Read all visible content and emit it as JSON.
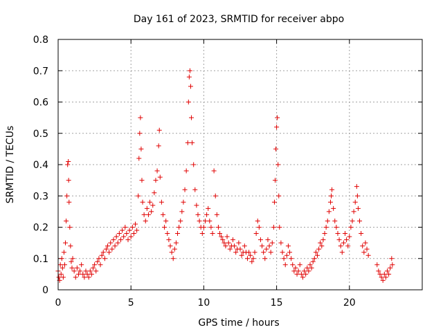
{
  "chart_data": {
    "type": "scatter",
    "title": "Day 161 of 2023, SRMTID for receiver abpo",
    "xlabel": "GPS time / hours",
    "ylabel": "SRMTID / TECUs",
    "xlim": [
      0,
      25
    ],
    "ylim": [
      0,
      0.8
    ],
    "x_ticks": [
      0,
      5,
      10,
      15,
      20
    ],
    "x_tick_labels": [
      "0",
      "5",
      "10",
      "15",
      "20"
    ],
    "y_ticks": [
      0,
      0.1,
      0.2,
      0.3,
      0.4,
      0.5,
      0.6,
      0.7,
      0.8
    ],
    "y_tick_labels": [
      "0",
      "0.1",
      "0.2",
      "0.3",
      "0.4",
      "0.5",
      "0.6",
      "0.7",
      "0.8"
    ],
    "grid": true,
    "marker": "+",
    "marker_color": "#e00000",
    "series": [
      {
        "name": "SRMTID",
        "points": [
          [
            0.0,
            0.06
          ],
          [
            0.05,
            0.04
          ],
          [
            0.1,
            0.03
          ],
          [
            0.15,
            0.08
          ],
          [
            0.2,
            0.05
          ],
          [
            0.25,
            0.1
          ],
          [
            0.3,
            0.07
          ],
          [
            0.35,
            0.04
          ],
          [
            0.4,
            0.12
          ],
          [
            0.45,
            0.08
          ],
          [
            0.5,
            0.15
          ],
          [
            0.55,
            0.22
          ],
          [
            0.6,
            0.3
          ],
          [
            0.65,
            0.4
          ],
          [
            0.7,
            0.41
          ],
          [
            0.72,
            0.35
          ],
          [
            0.75,
            0.28
          ],
          [
            0.8,
            0.2
          ],
          [
            0.85,
            0.14
          ],
          [
            0.9,
            0.09
          ],
          [
            0.95,
            0.07
          ],
          [
            1.0,
            0.1
          ],
          [
            1.1,
            0.06
          ],
          [
            1.2,
            0.04
          ],
          [
            1.3,
            0.07
          ],
          [
            1.4,
            0.05
          ],
          [
            1.5,
            0.06
          ],
          [
            1.6,
            0.08
          ],
          [
            1.7,
            0.05
          ],
          [
            1.8,
            0.04
          ],
          [
            1.9,
            0.06
          ],
          [
            2.0,
            0.05
          ],
          [
            2.1,
            0.04
          ],
          [
            2.2,
            0.06
          ],
          [
            2.3,
            0.05
          ],
          [
            2.4,
            0.07
          ],
          [
            2.5,
            0.08
          ],
          [
            2.6,
            0.06
          ],
          [
            2.7,
            0.09
          ],
          [
            2.8,
            0.1
          ],
          [
            2.9,
            0.08
          ],
          [
            3.0,
            0.11
          ],
          [
            3.1,
            0.12
          ],
          [
            3.2,
            0.1
          ],
          [
            3.3,
            0.13
          ],
          [
            3.4,
            0.14
          ],
          [
            3.5,
            0.12
          ],
          [
            3.6,
            0.15
          ],
          [
            3.7,
            0.13
          ],
          [
            3.8,
            0.16
          ],
          [
            3.9,
            0.14
          ],
          [
            4.0,
            0.17
          ],
          [
            4.1,
            0.15
          ],
          [
            4.2,
            0.18
          ],
          [
            4.3,
            0.16
          ],
          [
            4.4,
            0.19
          ],
          [
            4.5,
            0.17
          ],
          [
            4.6,
            0.2
          ],
          [
            4.7,
            0.18
          ],
          [
            4.8,
            0.16
          ],
          [
            4.9,
            0.19
          ],
          [
            5.0,
            0.17
          ],
          [
            5.1,
            0.2
          ],
          [
            5.2,
            0.18
          ],
          [
            5.3,
            0.21
          ],
          [
            5.4,
            0.19
          ],
          [
            5.5,
            0.3
          ],
          [
            5.55,
            0.42
          ],
          [
            5.6,
            0.5
          ],
          [
            5.65,
            0.55
          ],
          [
            5.7,
            0.45
          ],
          [
            5.75,
            0.35
          ],
          [
            5.8,
            0.28
          ],
          [
            5.9,
            0.24
          ],
          [
            6.0,
            0.22
          ],
          [
            6.1,
            0.26
          ],
          [
            6.2,
            0.24
          ],
          [
            6.3,
            0.28
          ],
          [
            6.4,
            0.25
          ],
          [
            6.5,
            0.27
          ],
          [
            6.6,
            0.31
          ],
          [
            6.7,
            0.35
          ],
          [
            6.8,
            0.38
          ],
          [
            6.9,
            0.46
          ],
          [
            6.95,
            0.51
          ],
          [
            7.0,
            0.36
          ],
          [
            7.1,
            0.28
          ],
          [
            7.2,
            0.24
          ],
          [
            7.3,
            0.2
          ],
          [
            7.4,
            0.22
          ],
          [
            7.5,
            0.18
          ],
          [
            7.6,
            0.16
          ],
          [
            7.7,
            0.14
          ],
          [
            7.8,
            0.12
          ],
          [
            7.9,
            0.1
          ],
          [
            8.0,
            0.13
          ],
          [
            8.1,
            0.15
          ],
          [
            8.2,
            0.18
          ],
          [
            8.3,
            0.2
          ],
          [
            8.4,
            0.22
          ],
          [
            8.5,
            0.25
          ],
          [
            8.6,
            0.28
          ],
          [
            8.7,
            0.32
          ],
          [
            8.8,
            0.38
          ],
          [
            8.9,
            0.47
          ],
          [
            8.95,
            0.6
          ],
          [
            9.0,
            0.68
          ],
          [
            9.05,
            0.7
          ],
          [
            9.1,
            0.65
          ],
          [
            9.15,
            0.55
          ],
          [
            9.2,
            0.47
          ],
          [
            9.3,
            0.4
          ],
          [
            9.4,
            0.32
          ],
          [
            9.5,
            0.27
          ],
          [
            9.6,
            0.24
          ],
          [
            9.7,
            0.22
          ],
          [
            9.8,
            0.2
          ],
          [
            9.9,
            0.18
          ],
          [
            10.0,
            0.2
          ],
          [
            10.1,
            0.22
          ],
          [
            10.2,
            0.24
          ],
          [
            10.3,
            0.26
          ],
          [
            10.4,
            0.22
          ],
          [
            10.5,
            0.2
          ],
          [
            10.6,
            0.18
          ],
          [
            10.7,
            0.38
          ],
          [
            10.8,
            0.3
          ],
          [
            10.9,
            0.24
          ],
          [
            11.0,
            0.2
          ],
          [
            11.1,
            0.18
          ],
          [
            11.2,
            0.17
          ],
          [
            11.3,
            0.16
          ],
          [
            11.4,
            0.15
          ],
          [
            11.5,
            0.14
          ],
          [
            11.6,
            0.17
          ],
          [
            11.7,
            0.15
          ],
          [
            11.8,
            0.13
          ],
          [
            11.9,
            0.14
          ],
          [
            12.0,
            0.16
          ],
          [
            12.1,
            0.14
          ],
          [
            12.2,
            0.12
          ],
          [
            12.3,
            0.13
          ],
          [
            12.4,
            0.15
          ],
          [
            12.5,
            0.13
          ],
          [
            12.6,
            0.11
          ],
          [
            12.7,
            0.12
          ],
          [
            12.8,
            0.14
          ],
          [
            12.9,
            0.12
          ],
          [
            13.0,
            0.1
          ],
          [
            13.1,
            0.12
          ],
          [
            13.2,
            0.11
          ],
          [
            13.3,
            0.09
          ],
          [
            13.4,
            0.1
          ],
          [
            13.5,
            0.12
          ],
          [
            13.6,
            0.18
          ],
          [
            13.7,
            0.22
          ],
          [
            13.8,
            0.2
          ],
          [
            13.9,
            0.16
          ],
          [
            14.0,
            0.14
          ],
          [
            14.1,
            0.12
          ],
          [
            14.2,
            0.1
          ],
          [
            14.3,
            0.13
          ],
          [
            14.4,
            0.16
          ],
          [
            14.5,
            0.14
          ],
          [
            14.6,
            0.12
          ],
          [
            14.7,
            0.15
          ],
          [
            14.8,
            0.2
          ],
          [
            14.85,
            0.28
          ],
          [
            14.9,
            0.35
          ],
          [
            14.95,
            0.45
          ],
          [
            15.0,
            0.52
          ],
          [
            15.05,
            0.55
          ],
          [
            15.1,
            0.4
          ],
          [
            15.15,
            0.3
          ],
          [
            15.2,
            0.2
          ],
          [
            15.3,
            0.15
          ],
          [
            15.4,
            0.12
          ],
          [
            15.5,
            0.1
          ],
          [
            15.6,
            0.08
          ],
          [
            15.7,
            0.11
          ],
          [
            15.8,
            0.14
          ],
          [
            15.9,
            0.12
          ],
          [
            16.0,
            0.1
          ],
          [
            16.1,
            0.08
          ],
          [
            16.2,
            0.06
          ],
          [
            16.3,
            0.07
          ],
          [
            16.4,
            0.05
          ],
          [
            16.5,
            0.06
          ],
          [
            16.6,
            0.08
          ],
          [
            16.7,
            0.05
          ],
          [
            16.8,
            0.04
          ],
          [
            16.9,
            0.06
          ],
          [
            17.0,
            0.05
          ],
          [
            17.1,
            0.07
          ],
          [
            17.2,
            0.06
          ],
          [
            17.3,
            0.08
          ],
          [
            17.4,
            0.07
          ],
          [
            17.5,
            0.09
          ],
          [
            17.6,
            0.1
          ],
          [
            17.7,
            0.12
          ],
          [
            17.8,
            0.11
          ],
          [
            17.9,
            0.13
          ],
          [
            18.0,
            0.15
          ],
          [
            18.1,
            0.14
          ],
          [
            18.2,
            0.16
          ],
          [
            18.3,
            0.18
          ],
          [
            18.4,
            0.2
          ],
          [
            18.5,
            0.22
          ],
          [
            18.6,
            0.25
          ],
          [
            18.7,
            0.28
          ],
          [
            18.75,
            0.3
          ],
          [
            18.8,
            0.32
          ],
          [
            18.9,
            0.26
          ],
          [
            19.0,
            0.22
          ],
          [
            19.1,
            0.2
          ],
          [
            19.2,
            0.18
          ],
          [
            19.3,
            0.16
          ],
          [
            19.4,
            0.14
          ],
          [
            19.5,
            0.12
          ],
          [
            19.6,
            0.15
          ],
          [
            19.7,
            0.18
          ],
          [
            19.8,
            0.16
          ],
          [
            19.9,
            0.14
          ],
          [
            20.0,
            0.17
          ],
          [
            20.1,
            0.2
          ],
          [
            20.2,
            0.22
          ],
          [
            20.3,
            0.25
          ],
          [
            20.4,
            0.28
          ],
          [
            20.5,
            0.33
          ],
          [
            20.55,
            0.3
          ],
          [
            20.6,
            0.26
          ],
          [
            20.7,
            0.22
          ],
          [
            20.8,
            0.18
          ],
          [
            20.9,
            0.14
          ],
          [
            21.0,
            0.12
          ],
          [
            21.1,
            0.15
          ],
          [
            21.2,
            0.13
          ],
          [
            21.3,
            0.11
          ],
          [
            21.9,
            0.08
          ],
          [
            22.0,
            0.06
          ],
          [
            22.1,
            0.05
          ],
          [
            22.2,
            0.04
          ],
          [
            22.3,
            0.03
          ],
          [
            22.4,
            0.05
          ],
          [
            22.5,
            0.04
          ],
          [
            22.6,
            0.06
          ],
          [
            22.7,
            0.05
          ],
          [
            22.8,
            0.07
          ],
          [
            22.9,
            0.1
          ],
          [
            22.95,
            0.08
          ]
        ]
      }
    ]
  }
}
